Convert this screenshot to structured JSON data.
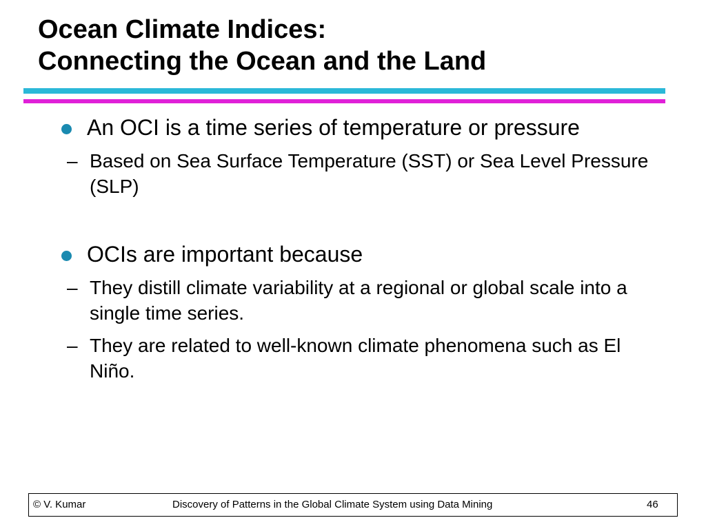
{
  "title": {
    "line1": "Ocean Climate Indices:",
    "line2": "Connecting the Ocean and the Land"
  },
  "bullets": [
    {
      "text": "An OCI is a time series of temperature or pressure",
      "sub": [
        "Based on Sea Surface Temperature (SST) or Sea Level Pressure (SLP)"
      ]
    },
    {
      "text": "OCIs are important because",
      "sub": [
        "They distill climate variability at a regional or global scale into a single time series.",
        "They are related to well-known climate phenomena such as El Niño."
      ]
    }
  ],
  "footer": {
    "author": "© V. Kumar",
    "title": "Discovery of Patterns in the Global Climate System using Data Mining",
    "page": "46"
  }
}
